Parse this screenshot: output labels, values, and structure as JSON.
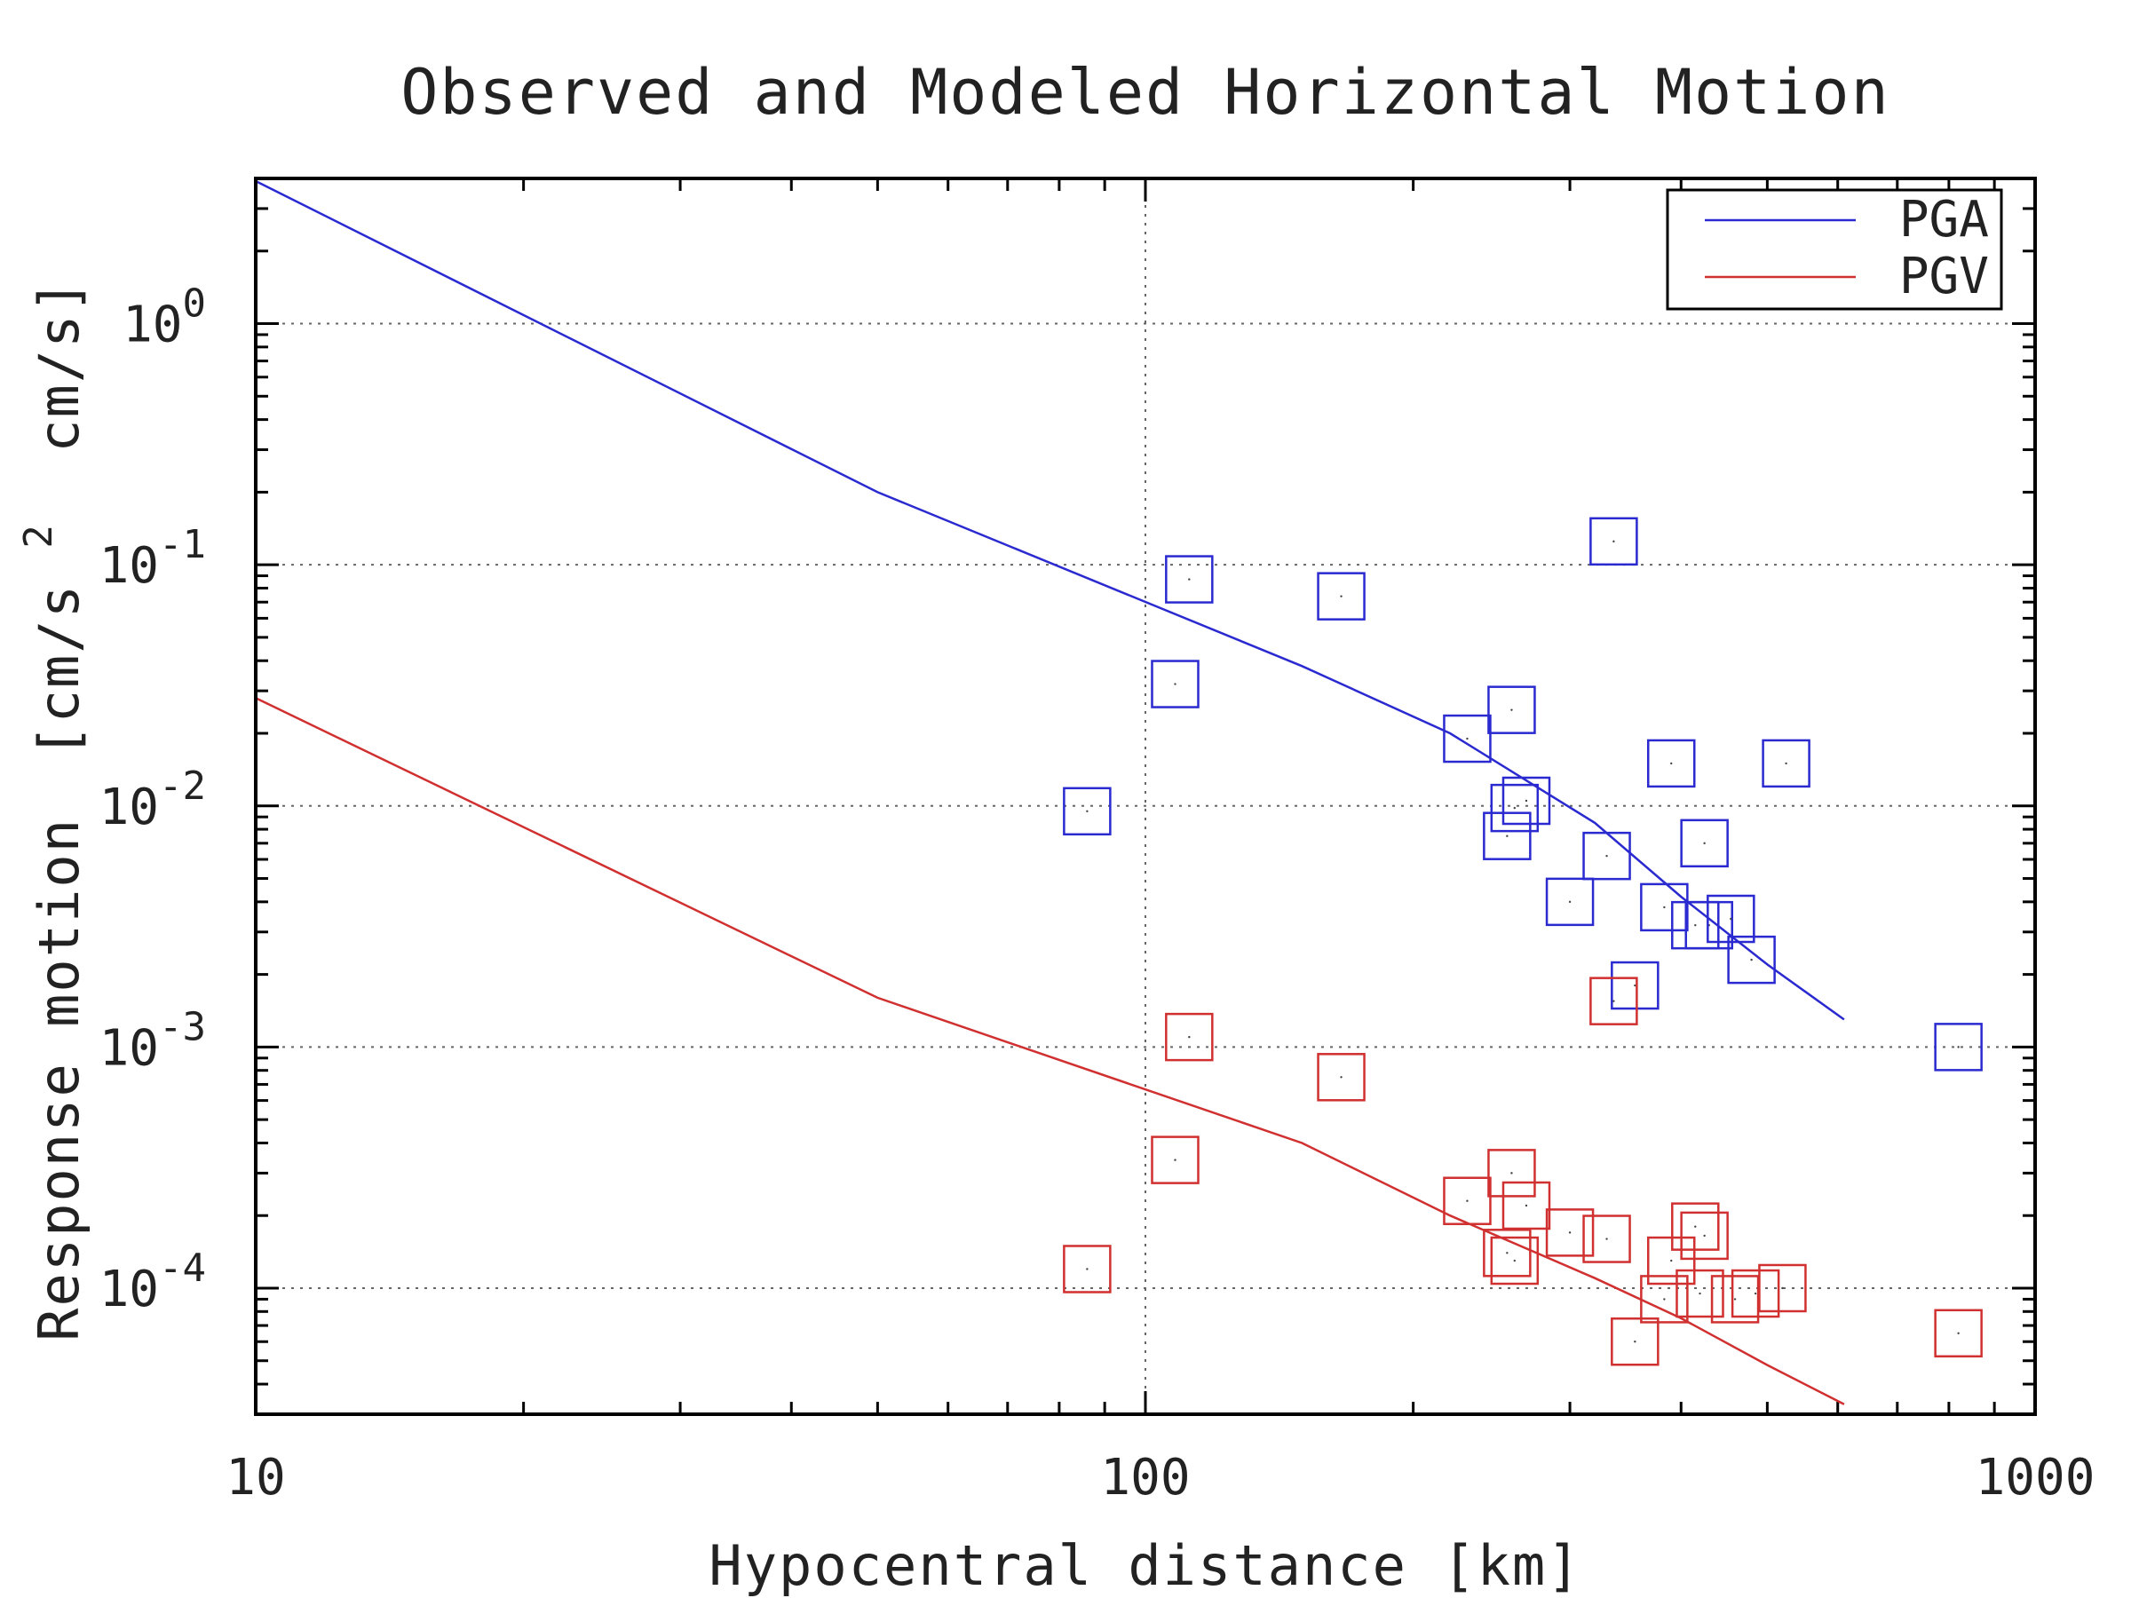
{
  "chart_data": {
    "type": "scatter",
    "title": "Observed and Modeled Horizontal Motion",
    "xlabel": "Hypocentral distance [km]",
    "ylabel_main": "Response motion",
    "ylabel_units_open": "[cm/s",
    "ylabel_units_sup": "2",
    "ylabel_units_close": "cm/s]",
    "xscale": "log",
    "yscale": "log",
    "xlim": [
      10,
      1000
    ],
    "ylim": [
      3e-05,
      4
    ],
    "grid": "dotted",
    "legend_position": "top-right",
    "x_ticks": [
      {
        "value": 10,
        "label": "10"
      },
      {
        "value": 100,
        "label": "100"
      },
      {
        "value": 1000,
        "label": "1000"
      }
    ],
    "y_ticks": [
      {
        "value": 1,
        "base": "10",
        "exp": "0"
      },
      {
        "value": 0.1,
        "base": "10",
        "exp": "-1"
      },
      {
        "value": 0.01,
        "base": "10",
        "exp": "-2"
      },
      {
        "value": 0.001,
        "base": "10",
        "exp": "-3"
      },
      {
        "value": 0.0001,
        "base": "10",
        "exp": "-4"
      }
    ],
    "series": [
      {
        "name": "PGA",
        "color": "#2a2ad0",
        "model_line": [
          [
            10,
            3.9
          ],
          [
            50,
            0.2
          ],
          [
            150,
            0.038
          ],
          [
            220,
            0.02
          ],
          [
            320,
            0.0085
          ],
          [
            400,
            0.0042
          ],
          [
            500,
            0.0022
          ],
          [
            610,
            0.0013
          ]
        ],
        "observed": [
          [
            86,
            0.0095
          ],
          [
            108,
            0.032
          ],
          [
            112,
            0.087
          ],
          [
            166,
            0.074
          ],
          [
            230,
            0.019
          ],
          [
            255,
            0.0075
          ],
          [
            258,
            0.025
          ],
          [
            260,
            0.0098
          ],
          [
            268,
            0.0105
          ],
          [
            300,
            0.004
          ],
          [
            330,
            0.0062
          ],
          [
            336,
            0.125
          ],
          [
            355,
            0.0018
          ],
          [
            383,
            0.0038
          ],
          [
            390,
            0.015
          ],
          [
            415,
            0.0032
          ],
          [
            425,
            0.007
          ],
          [
            430,
            0.0032
          ],
          [
            455,
            0.0034
          ],
          [
            480,
            0.0023
          ],
          [
            525,
            0.015
          ],
          [
            820,
            0.001
          ]
        ]
      },
      {
        "name": "PGV",
        "color": "#d03030",
        "model_line": [
          [
            10,
            0.028
          ],
          [
            50,
            0.0016
          ],
          [
            150,
            0.0004
          ],
          [
            220,
            0.0002
          ],
          [
            320,
            0.00011
          ],
          [
            400,
            7.5e-05
          ],
          [
            500,
            4.8e-05
          ],
          [
            610,
            3.3e-05
          ]
        ],
        "observed": [
          [
            86,
            0.00012
          ],
          [
            108,
            0.00034
          ],
          [
            112,
            0.0011
          ],
          [
            166,
            0.00075
          ],
          [
            230,
            0.00023
          ],
          [
            255,
            0.00014
          ],
          [
            258,
            0.0003
          ],
          [
            260,
            0.00013
          ],
          [
            268,
            0.00022
          ],
          [
            300,
            0.00017
          ],
          [
            330,
            0.00016
          ],
          [
            336,
            0.00155
          ],
          [
            355,
            6e-05
          ],
          [
            383,
            9e-05
          ],
          [
            390,
            0.00013
          ],
          [
            415,
            0.00018
          ],
          [
            420,
            9.5e-05
          ],
          [
            425,
            0.000165
          ],
          [
            460,
            9e-05
          ],
          [
            485,
            9.5e-05
          ],
          [
            520,
            0.0001
          ],
          [
            820,
            6.5e-05
          ]
        ]
      }
    ]
  }
}
